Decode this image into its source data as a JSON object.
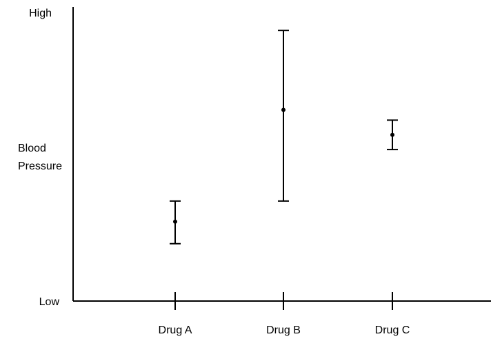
{
  "chart_data": {
    "type": "scatter",
    "title": "",
    "xlabel": "",
    "ylabel_lines": [
      "Blood",
      "Pressure"
    ],
    "y_tick_labels": {
      "top": "High",
      "bottom": "Low"
    },
    "categories": [
      "Drug A",
      "Drug B",
      "Drug C"
    ],
    "ylim": [
      0,
      100
    ],
    "series": [
      {
        "points": [
          {
            "category": "Drug A",
            "value": 27,
            "low": 19.5,
            "high": 34
          },
          {
            "category": "Drug B",
            "value": 65,
            "low": 34,
            "high": 92
          },
          {
            "category": "Drug C",
            "value": 56.5,
            "low": 51.5,
            "high": 61.5
          }
        ]
      }
    ],
    "grid": false,
    "legend": "none"
  },
  "colors": {
    "ink": "#000000",
    "background": "#ffffff"
  }
}
